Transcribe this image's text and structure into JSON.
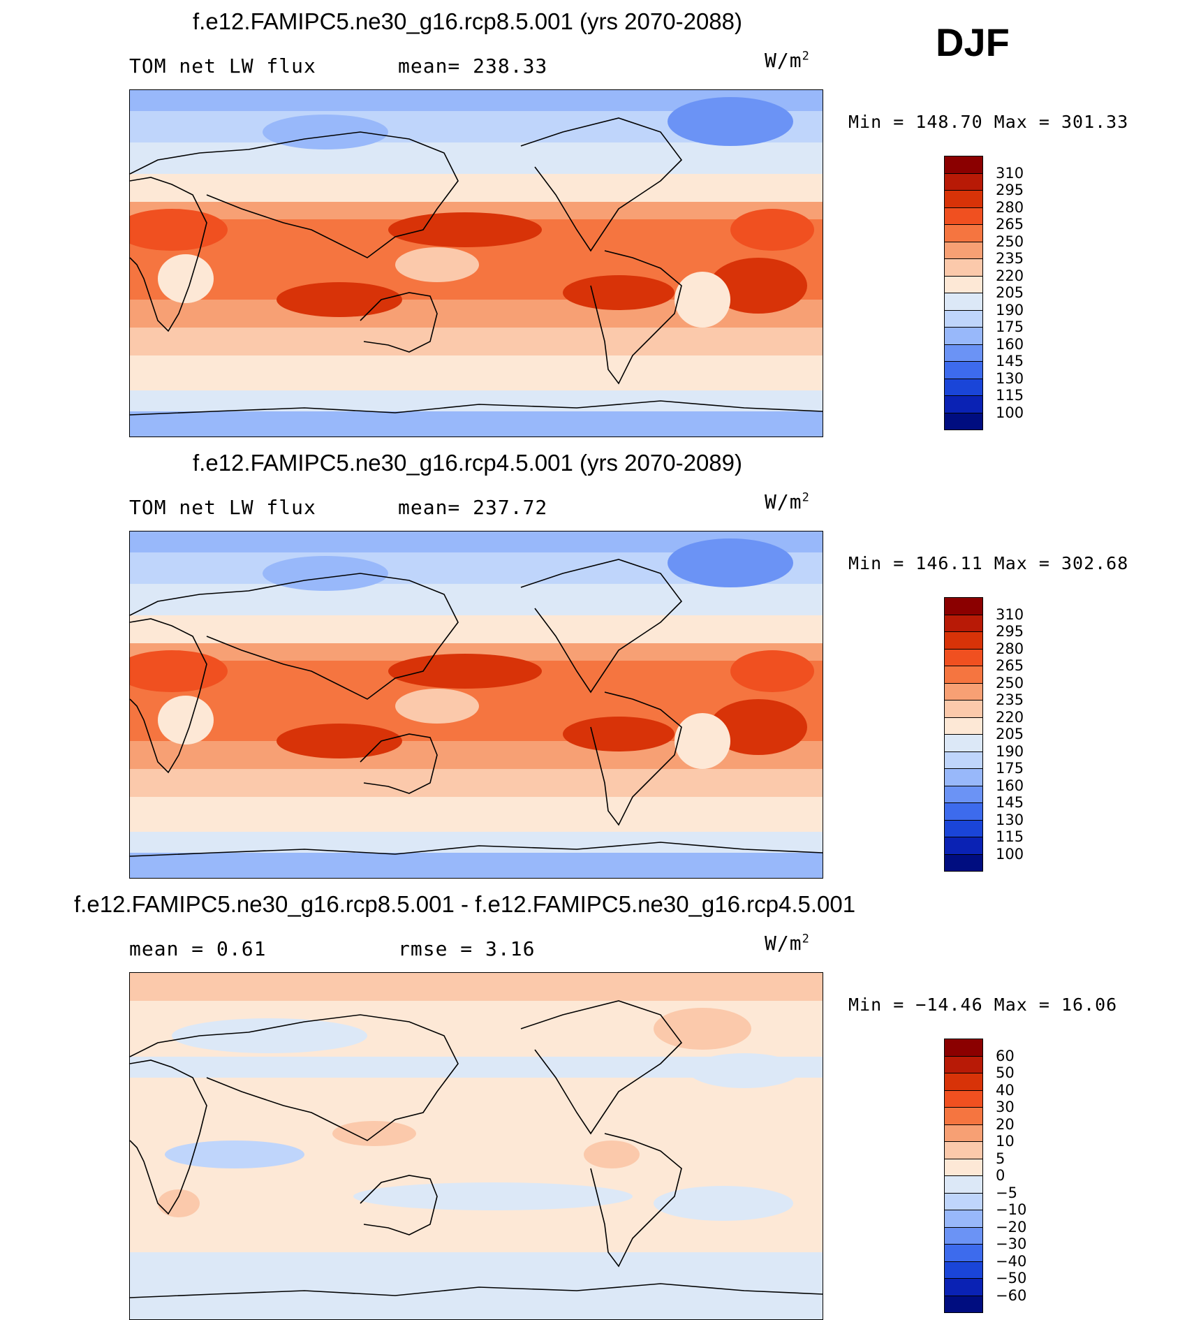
{
  "season_label": "DJF",
  "units_label": "W/m",
  "units_exp": "2",
  "panels": [
    {
      "title": "f.e12.FAMIPC5.ne30_g16.rcp8.5.001 (yrs 2070-2088)",
      "left_text": "TOM net LW flux",
      "stat_text": "mean=  238.33",
      "minmax": "Min  =  148.70  Max  =  301.33",
      "colorbar": "abs"
    },
    {
      "title": "f.e12.FAMIPC5.ne30_g16.rcp4.5.001 (yrs 2070-2089)",
      "left_text": "TOM net LW flux",
      "stat_text": "mean=  237.72",
      "minmax": "Min  =  146.11  Max  =  302.68",
      "colorbar": "abs"
    },
    {
      "title": "f.e12.FAMIPC5.ne30_g16.rcp8.5.001 - f.e12.FAMIPC5.ne30_g16.rcp4.5.001",
      "left_text": "mean  =     0.61",
      "stat_text": "rmse  =     3.16",
      "minmax": "Min  =  −14.46  Max  =    16.06",
      "colorbar": "diff"
    }
  ],
  "colorbars": {
    "abs": {
      "labels": [
        "310",
        "295",
        "280",
        "265",
        "250",
        "235",
        "220",
        "205",
        "190",
        "175",
        "160",
        "145",
        "130",
        "115",
        "100"
      ],
      "colors": [
        "#8b0000",
        "#b81a06",
        "#d83308",
        "#f05020",
        "#f57540",
        "#f7a074",
        "#fbc9ab",
        "#fde8d6",
        "#dce8f7",
        "#bfd5fb",
        "#98b8fa",
        "#6b93f5",
        "#3d6bed",
        "#1a45d8",
        "#0a22b4",
        "#000d80"
      ]
    },
    "diff": {
      "labels": [
        "60",
        "50",
        "40",
        "30",
        "20",
        "10",
        "5",
        "0",
        "−5",
        "−10",
        "−20",
        "−30",
        "−40",
        "−50",
        "−60"
      ],
      "colors": [
        "#8b0000",
        "#b81a06",
        "#d83308",
        "#f05020",
        "#f57540",
        "#f7a074",
        "#fbc9ab",
        "#fde8d6",
        "#dce8f7",
        "#bfd5fb",
        "#98b8fa",
        "#6b93f5",
        "#3d6bed",
        "#1a45d8",
        "#0a22b4",
        "#000d80"
      ]
    }
  },
  "chart_data": [
    {
      "type": "heatmap",
      "title": "f.e12.FAMIPC5.ne30_g16.rcp8.5.001 (yrs 2070-2088)",
      "variable": "TOM net LW flux",
      "units": "W/m2",
      "mean": 238.33,
      "min": 148.7,
      "max": 301.33,
      "levels": [
        100,
        115,
        130,
        145,
        160,
        175,
        190,
        205,
        220,
        235,
        250,
        265,
        280,
        295,
        310
      ],
      "projection": "cylindrical equidistant, Pacific-centered"
    },
    {
      "type": "heatmap",
      "title": "f.e12.FAMIPC5.ne30_g16.rcp4.5.001 (yrs 2070-2089)",
      "variable": "TOM net LW flux",
      "units": "W/m2",
      "mean": 237.72,
      "min": 146.11,
      "max": 302.68,
      "levels": [
        100,
        115,
        130,
        145,
        160,
        175,
        190,
        205,
        220,
        235,
        250,
        265,
        280,
        295,
        310
      ],
      "projection": "cylindrical equidistant, Pacific-centered"
    },
    {
      "type": "heatmap",
      "title": "f.e12.FAMIPC5.ne30_g16.rcp8.5.001 - f.e12.FAMIPC5.ne30_g16.rcp4.5.001",
      "units": "W/m2",
      "mean": 0.61,
      "rmse": 3.16,
      "min": -14.46,
      "max": 16.06,
      "levels": [
        -60,
        -50,
        -40,
        -30,
        -20,
        -10,
        -5,
        0,
        5,
        10,
        20,
        30,
        40,
        50,
        60
      ],
      "projection": "cylindrical equidistant, Pacific-centered"
    }
  ]
}
